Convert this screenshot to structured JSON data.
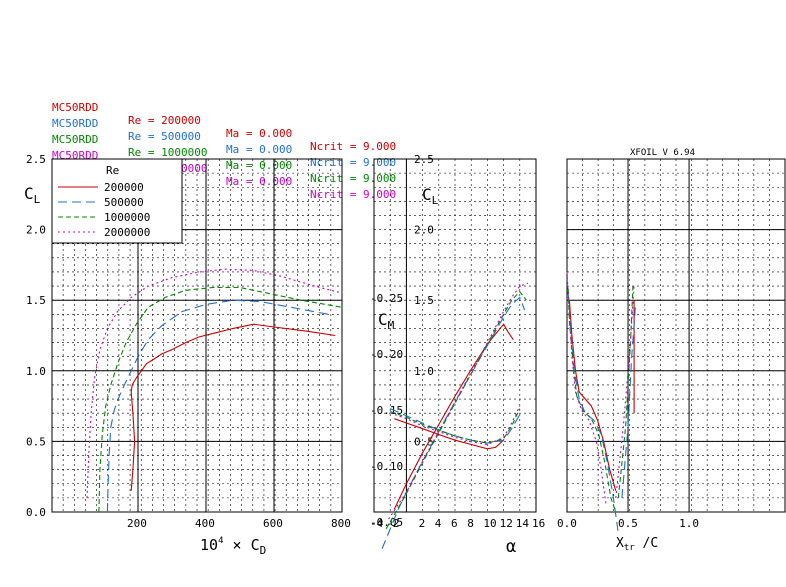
{
  "runs": [
    {
      "airfoil": "MC50RDD",
      "re": "Re = 200000",
      "ma": "Ma = 0.000",
      "ncrit": "Ncrit = 9.000",
      "color": "#cc0000"
    },
    {
      "airfoil": "MC50RDD",
      "re": "Re = 500000",
      "ma": "Ma = 0.000",
      "ncrit": "Ncrit = 9.000",
      "color": "#1f6fd0"
    },
    {
      "airfoil": "MC50RDD",
      "re": "Re = 1000000",
      "ma": "Ma = 0.000",
      "ncrit": "Ncrit = 9.000",
      "color": "#008800"
    },
    {
      "airfoil": "MC50RDD",
      "re": "Re = 2000000",
      "ma": "Ma = 0.000",
      "ncrit": "Ncrit = 9.000",
      "color": "#cc00cc"
    }
  ],
  "version": "XFOIL V 6.94",
  "chart_data": [
    {
      "type": "line",
      "title": "",
      "xlabel": "10^4 × C_D",
      "ylabel": "C_L",
      "xlim": [
        0,
        800
      ],
      "ylim": [
        0,
        2.5
      ],
      "xticks": [
        "200",
        "400",
        "600",
        "800"
      ],
      "yticks": [
        "0.0",
        "0.5",
        "1.0",
        "1.5",
        "2.0",
        "2.5"
      ],
      "grid": true,
      "legend": {
        "title": "Re",
        "placement": "top-left",
        "entries": [
          "200000",
          "500000",
          "1000000",
          "2000000"
        ]
      },
      "series": [
        {
          "name": "200000",
          "color": "#cc0000",
          "dash": "",
          "x": [
            180,
            185,
            190,
            185,
            180,
            183,
            195,
            210,
            225,
            245,
            270,
            300,
            340,
            380,
            430,
            480,
            540,
            600,
            700,
            780
          ],
          "y": [
            0.15,
            0.3,
            0.5,
            0.7,
            0.85,
            0.9,
            0.95,
            1.0,
            1.05,
            1.08,
            1.12,
            1.15,
            1.2,
            1.24,
            1.27,
            1.3,
            1.33,
            1.31,
            1.28,
            1.25
          ]
        },
        {
          "name": "500000",
          "color": "#1f6fd0",
          "dash": "9,5",
          "x": [
            110,
            112,
            115,
            120,
            130,
            145,
            160,
            180,
            200,
            230,
            270,
            330,
            400,
            480,
            560,
            650,
            760
          ],
          "y": [
            0.0,
            0.2,
            0.4,
            0.6,
            0.72,
            0.82,
            0.9,
            1.0,
            1.1,
            1.22,
            1.32,
            1.42,
            1.47,
            1.5,
            1.49,
            1.45,
            1.4
          ]
        },
        {
          "name": "1000000",
          "color": "#008800",
          "dash": "5,3",
          "x": [
            85,
            88,
            95,
            105,
            120,
            140,
            165,
            195,
            230,
            280,
            340,
            420,
            500,
            580,
            680,
            800
          ],
          "y": [
            0.0,
            0.3,
            0.55,
            0.75,
            0.9,
            1.05,
            1.2,
            1.33,
            1.45,
            1.52,
            1.57,
            1.59,
            1.59,
            1.55,
            1.5,
            1.45
          ]
        },
        {
          "name": "2000000",
          "color": "#cc00cc",
          "dash": "2,3",
          "x": [
            50,
            55,
            62,
            72,
            88,
            110,
            140,
            180,
            230,
            300,
            380,
            460,
            540,
            620,
            720,
            800
          ],
          "y": [
            0.1,
            0.4,
            0.7,
            0.95,
            1.15,
            1.3,
            1.42,
            1.52,
            1.6,
            1.66,
            1.7,
            1.72,
            1.71,
            1.67,
            1.6,
            1.55
          ]
        }
      ]
    },
    {
      "type": "line",
      "title": "",
      "xlabel": "α",
      "ylabel": "C_L",
      "y2label": "C_M",
      "xlim": [
        -4,
        16
      ],
      "ylim": [
        0,
        2.5
      ],
      "y2lim": [
        0,
        0.3
      ],
      "xticks": [
        "-4",
        "-2",
        "2",
        "4",
        "6",
        "8",
        "10",
        "12",
        "14",
        "16"
      ],
      "yticks": [
        "2.5",
        "2.0",
        "1.5",
        "1.0",
        "0.5"
      ],
      "y2ticks": [
        "-0.25",
        "-0.20",
        "-0.15",
        "-0.10",
        "-0.05"
      ],
      "grid": true,
      "series": [
        {
          "name": "200000",
          "color": "#cc0000",
          "dash": "",
          "x": [
            -1.5,
            0,
            2,
            4,
            6,
            8,
            10,
            12,
            12.6,
            13.2
          ],
          "y": [
            0.02,
            0.2,
            0.42,
            0.62,
            0.82,
            1.01,
            1.19,
            1.33,
            1.27,
            1.22
          ]
        },
        {
          "name": "500000",
          "color": "#1f6fd0",
          "dash": "9,5",
          "x": [
            -3,
            -1,
            0,
            2,
            4,
            6,
            8,
            10,
            12,
            13,
            14,
            14.6
          ],
          "y": [
            -0.26,
            0.02,
            0.14,
            0.36,
            0.57,
            0.78,
            0.98,
            1.18,
            1.38,
            1.47,
            1.52,
            1.43
          ]
        },
        {
          "name": "1000000",
          "color": "#008800",
          "dash": "5,3",
          "x": [
            -2.5,
            -1,
            0,
            2,
            4,
            6,
            8,
            10,
            12,
            13,
            14,
            14.8
          ],
          "y": [
            -0.12,
            0.03,
            0.13,
            0.35,
            0.56,
            0.77,
            0.98,
            1.19,
            1.4,
            1.5,
            1.56,
            1.5
          ]
        },
        {
          "name": "2000000",
          "color": "#cc00cc",
          "dash": "2,3",
          "x": [
            -2.2,
            0,
            2,
            4,
            6,
            8,
            10,
            12,
            13,
            14,
            15
          ],
          "y": [
            -0.05,
            0.14,
            0.36,
            0.57,
            0.78,
            0.99,
            1.2,
            1.42,
            1.52,
            1.6,
            1.62
          ]
        }
      ],
      "cm_series": [
        {
          "name": "200000",
          "color": "#cc0000",
          "dash": "",
          "x": [
            -1.5,
            0,
            2,
            4,
            6,
            8,
            10,
            11,
            12
          ],
          "y": [
            0.065,
            0.062,
            0.058,
            0.054,
            0.05,
            0.047,
            0.044,
            0.045,
            0.05
          ]
        },
        {
          "name": "500000",
          "color": "#1f6fd0",
          "dash": "9,5",
          "x": [
            -2,
            0,
            2,
            4,
            6,
            8,
            10,
            12,
            13,
            14
          ],
          "y": [
            0.072,
            0.067,
            0.062,
            0.057,
            0.053,
            0.05,
            0.048,
            0.05,
            0.058,
            0.068
          ]
        },
        {
          "name": "1000000",
          "color": "#008800",
          "dash": "5,3",
          "x": [
            -2,
            0,
            2,
            4,
            6,
            8,
            10,
            12,
            13,
            14
          ],
          "y": [
            0.07,
            0.066,
            0.061,
            0.057,
            0.053,
            0.05,
            0.048,
            0.051,
            0.06,
            0.072
          ]
        },
        {
          "name": "2000000",
          "color": "#cc00cc",
          "dash": "2,3",
          "x": [
            -2,
            0,
            2,
            4,
            6,
            8,
            10,
            12,
            13,
            14
          ],
          "y": [
            0.069,
            0.065,
            0.06,
            0.056,
            0.052,
            0.049,
            0.047,
            0.052,
            0.062,
            0.074
          ]
        }
      ]
    },
    {
      "type": "line",
      "title": "",
      "xlabel": "X_tr / C",
      "ylabel": "",
      "xlim": [
        0,
        1
      ],
      "ylim": [
        0,
        2.5
      ],
      "xticks": [
        "0.0",
        "0.5",
        "1.0"
      ],
      "grid": true,
      "series": [
        {
          "name": "200000 upper",
          "color": "#cc0000",
          "dash": "",
          "x": [
            0.02,
            0.04,
            0.07,
            0.1,
            0.15,
            0.2,
            0.25,
            0.3,
            0.35,
            0.4
          ],
          "y": [
            1.5,
            1.25,
            1.0,
            0.85,
            0.8,
            0.75,
            0.65,
            0.5,
            0.3,
            0.15
          ]
        },
        {
          "name": "200000 lower",
          "color": "#cc0000",
          "dash": "",
          "x": [
            0.55,
            0.55,
            0.55,
            0.55
          ],
          "y": [
            0.7,
            1.0,
            1.3,
            1.5
          ]
        },
        {
          "name": "500000 upper",
          "color": "#1f6fd0",
          "dash": "9,5",
          "x": [
            0.01,
            0.03,
            0.06,
            0.1,
            0.15,
            0.22,
            0.28,
            0.33,
            0.38,
            0.42
          ],
          "y": [
            1.55,
            1.3,
            1.0,
            0.8,
            0.7,
            0.65,
            0.55,
            0.35,
            0.1,
            -0.15
          ]
        },
        {
          "name": "500000 lower",
          "color": "#1f6fd0",
          "dash": "9,5",
          "x": [
            0.45,
            0.5,
            0.53,
            0.56
          ],
          "y": [
            0.1,
            0.6,
            1.1,
            1.45
          ]
        },
        {
          "name": "1000000 upper",
          "color": "#008800",
          "dash": "5,3",
          "x": [
            0.01,
            0.02,
            0.05,
            0.08,
            0.13,
            0.2,
            0.26,
            0.31,
            0.36,
            0.4
          ],
          "y": [
            1.58,
            1.35,
            1.05,
            0.82,
            0.72,
            0.66,
            0.55,
            0.35,
            0.1,
            0.0
          ]
        },
        {
          "name": "1000000 lower",
          "color": "#008800",
          "dash": "5,3",
          "x": [
            0.42,
            0.48,
            0.52,
            0.54
          ],
          "y": [
            0.1,
            0.6,
            1.2,
            1.6
          ]
        },
        {
          "name": "2000000 upper",
          "color": "#cc00cc",
          "dash": "2,3",
          "x": [
            0.0,
            0.02,
            0.04,
            0.07,
            0.12,
            0.18,
            0.24,
            0.28,
            0.32
          ],
          "y": [
            1.7,
            1.4,
            1.1,
            0.85,
            0.72,
            0.65,
            0.5,
            0.3,
            0.05
          ]
        },
        {
          "name": "2000000 lower",
          "color": "#cc00cc",
          "dash": "2,3",
          "x": [
            0.4,
            0.46,
            0.51,
            0.55
          ],
          "y": [
            0.1,
            0.6,
            1.1,
            1.6
          ]
        }
      ]
    }
  ]
}
